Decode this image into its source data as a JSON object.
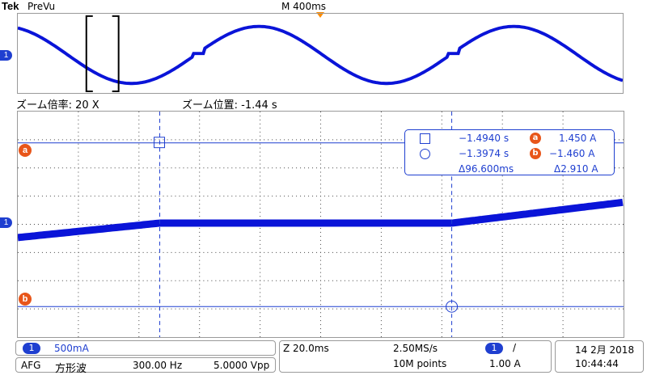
{
  "header": {
    "brand": "Tek",
    "mode": "PreVu",
    "timebase_marker": "M 400ms"
  },
  "zoom": {
    "factor_label": "ズーム倍率: 20 X",
    "position_label": "ズーム位置: -1.44 s"
  },
  "markers": {
    "channel": "1",
    "cursor_a": "a",
    "cursor_b": "b"
  },
  "cursor_readout": {
    "a_time": "−1.4940 s",
    "b_time": "−1.3974 s",
    "delta_time": "Δ96.600ms",
    "a_value": "1.450 A",
    "b_value": "−1.460 A",
    "delta_value": "Δ2.910 A"
  },
  "status": {
    "ch1_num": "1",
    "ch1_scale": "500mA",
    "afg_label": "AFG",
    "afg_wave": "方形波",
    "afg_freq": "300.00 Hz",
    "afg_amp": "5.0000 Vpp",
    "zoom_scale": "Z 20.0ms",
    "sample_rate": "2.50MS/s",
    "record_length": "10M points",
    "trigger_ch": "1",
    "trigger_slope": "/",
    "trigger_level": "1.00 A",
    "date": "14 2月 2018",
    "time": "10:44:44"
  },
  "colors": {
    "trace": "#0a14d8",
    "channel": "#1f3fd0",
    "cursor_marker": "#e8561a",
    "trigger_marker": "#ff8c00"
  }
}
